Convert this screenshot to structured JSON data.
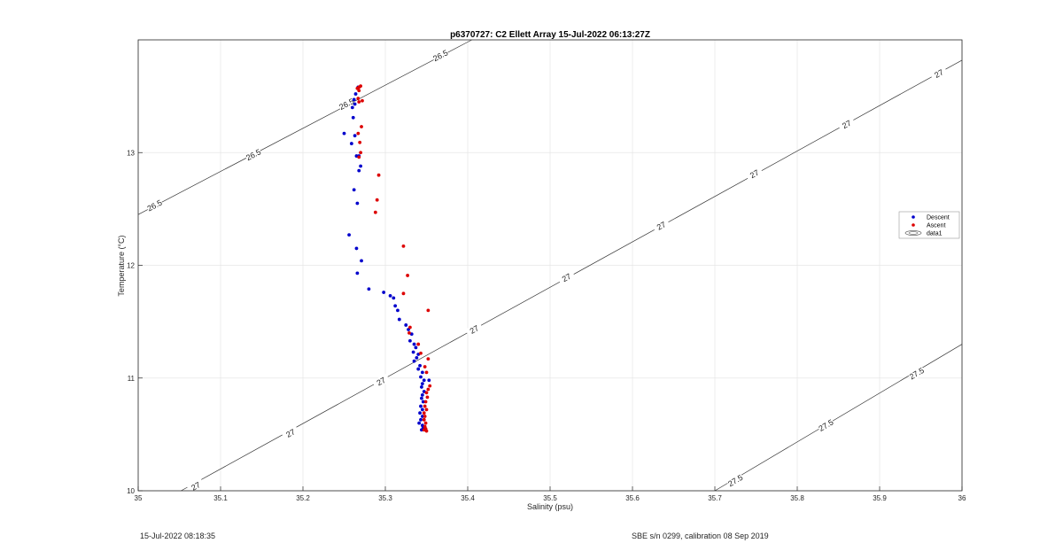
{
  "chart_data": {
    "type": "scatter",
    "title": "p6370727: C2 Ellett Array 15-Jul-2022 06:13:27Z",
    "xlabel": "Salinity (psu)",
    "ylabel": "Temperature (°C)",
    "xlim": [
      35,
      36
    ],
    "ylim": [
      10,
      14
    ],
    "xticks": [
      "35",
      "35.1",
      "35.2",
      "35.3",
      "35.4",
      "35.5",
      "35.6",
      "35.7",
      "35.8",
      "35.9",
      "36"
    ],
    "yticks": [
      "10",
      "11",
      "12",
      "13"
    ],
    "grid": true,
    "legend_position": "right",
    "series": [
      {
        "name": "Descent",
        "color": "#0000cc",
        "points": [
          [
            35.267,
            13.58
          ],
          [
            35.264,
            13.52
          ],
          [
            35.262,
            13.47
          ],
          [
            35.263,
            13.43
          ],
          [
            35.26,
            13.4
          ],
          [
            35.261,
            13.31
          ],
          [
            35.25,
            13.17
          ],
          [
            35.263,
            13.15
          ],
          [
            35.259,
            13.08
          ],
          [
            35.265,
            12.97
          ],
          [
            35.268,
            12.97
          ],
          [
            35.27,
            12.88
          ],
          [
            35.268,
            12.84
          ],
          [
            35.262,
            12.67
          ],
          [
            35.266,
            12.55
          ],
          [
            35.256,
            12.27
          ],
          [
            35.265,
            12.15
          ],
          [
            35.271,
            12.04
          ],
          [
            35.266,
            11.93
          ],
          [
            35.28,
            11.79
          ],
          [
            35.298,
            11.76
          ],
          [
            35.306,
            11.73
          ],
          [
            35.31,
            11.71
          ],
          [
            35.312,
            11.64
          ],
          [
            35.315,
            11.6
          ],
          [
            35.317,
            11.52
          ],
          [
            35.325,
            11.47
          ],
          [
            35.328,
            11.43
          ],
          [
            35.332,
            11.39
          ],
          [
            35.33,
            11.33
          ],
          [
            35.335,
            11.3
          ],
          [
            35.337,
            11.27
          ],
          [
            35.334,
            11.23
          ],
          [
            35.34,
            11.21
          ],
          [
            35.338,
            11.18
          ],
          [
            35.335,
            11.15
          ],
          [
            35.342,
            11.11
          ],
          [
            35.34,
            11.08
          ],
          [
            35.345,
            11.05
          ],
          [
            35.343,
            11.01
          ],
          [
            35.347,
            10.98
          ],
          [
            35.345,
            10.95
          ],
          [
            35.344,
            10.92
          ],
          [
            35.347,
            10.88
          ],
          [
            35.345,
            10.85
          ],
          [
            35.344,
            10.82
          ],
          [
            35.346,
            10.79
          ],
          [
            35.343,
            10.75
          ],
          [
            35.345,
            10.72
          ],
          [
            35.342,
            10.69
          ],
          [
            35.345,
            10.66
          ],
          [
            35.343,
            10.63
          ],
          [
            35.341,
            10.6
          ],
          [
            35.345,
            10.58
          ],
          [
            35.346,
            10.56
          ],
          [
            35.344,
            10.54
          ],
          [
            35.353,
            10.98
          ]
        ]
      },
      {
        "name": "Ascent",
        "color": "#dd0000",
        "points": [
          [
            35.268,
            13.58
          ],
          [
            35.27,
            13.59
          ],
          [
            35.266,
            13.57
          ],
          [
            35.268,
            13.55
          ],
          [
            35.267,
            13.48
          ],
          [
            35.272,
            13.46
          ],
          [
            35.268,
            13.45
          ],
          [
            35.271,
            13.23
          ],
          [
            35.267,
            13.17
          ],
          [
            35.269,
            13.09
          ],
          [
            35.27,
            13.0
          ],
          [
            35.268,
            12.96
          ],
          [
            35.292,
            12.8
          ],
          [
            35.29,
            12.58
          ],
          [
            35.288,
            12.47
          ],
          [
            35.322,
            12.17
          ],
          [
            35.327,
            11.91
          ],
          [
            35.322,
            11.75
          ],
          [
            35.352,
            11.6
          ],
          [
            35.33,
            11.45
          ],
          [
            35.329,
            11.4
          ],
          [
            35.34,
            11.3
          ],
          [
            35.343,
            11.22
          ],
          [
            35.352,
            11.17
          ],
          [
            35.348,
            11.1
          ],
          [
            35.35,
            11.05
          ],
          [
            35.354,
            10.93
          ],
          [
            35.352,
            10.9
          ],
          [
            35.35,
            10.87
          ],
          [
            35.351,
            10.83
          ],
          [
            35.349,
            10.79
          ],
          [
            35.348,
            10.75
          ],
          [
            35.35,
            10.72
          ],
          [
            35.347,
            10.69
          ],
          [
            35.348,
            10.66
          ],
          [
            35.347,
            10.63
          ],
          [
            35.349,
            10.6
          ],
          [
            35.348,
            10.57
          ],
          [
            35.347,
            10.54
          ],
          [
            35.349,
            10.55
          ],
          [
            35.35,
            10.53
          ]
        ]
      }
    ],
    "legend": [
      "Descent",
      "Ascent",
      "data1"
    ],
    "contours": [
      {
        "sigma": "26.5",
        "line": [
          [
            35,
            12.45
          ],
          [
            35.405,
            14.0
          ]
        ],
        "labels": [
          [
            35.02,
            12.53
          ],
          [
            35.14,
            12.98
          ],
          [
            35.253,
            13.43
          ],
          [
            35.367,
            13.86
          ]
        ]
      },
      {
        "sigma": "27",
        "line": [
          [
            35.052,
            10.0
          ],
          [
            36,
            13.82
          ]
        ],
        "labels": [
          [
            35.07,
            10.04
          ],
          [
            35.185,
            10.51
          ],
          [
            35.295,
            10.97
          ],
          [
            35.408,
            11.43
          ],
          [
            35.52,
            11.89
          ],
          [
            35.635,
            12.35
          ],
          [
            35.748,
            12.81
          ],
          [
            35.86,
            13.25
          ],
          [
            35.972,
            13.7
          ]
        ]
      },
      {
        "sigma": "27.5",
        "line": [
          [
            35.7,
            10.0
          ],
          [
            36,
            11.3
          ]
        ],
        "labels": [
          [
            35.725,
            10.09
          ],
          [
            35.835,
            10.58
          ],
          [
            35.945,
            11.04
          ]
        ]
      }
    ]
  },
  "footer": {
    "left": "15-Jul-2022 08:18:35",
    "right": "SBE s/n 0299, calibration 08 Sep 2019"
  }
}
